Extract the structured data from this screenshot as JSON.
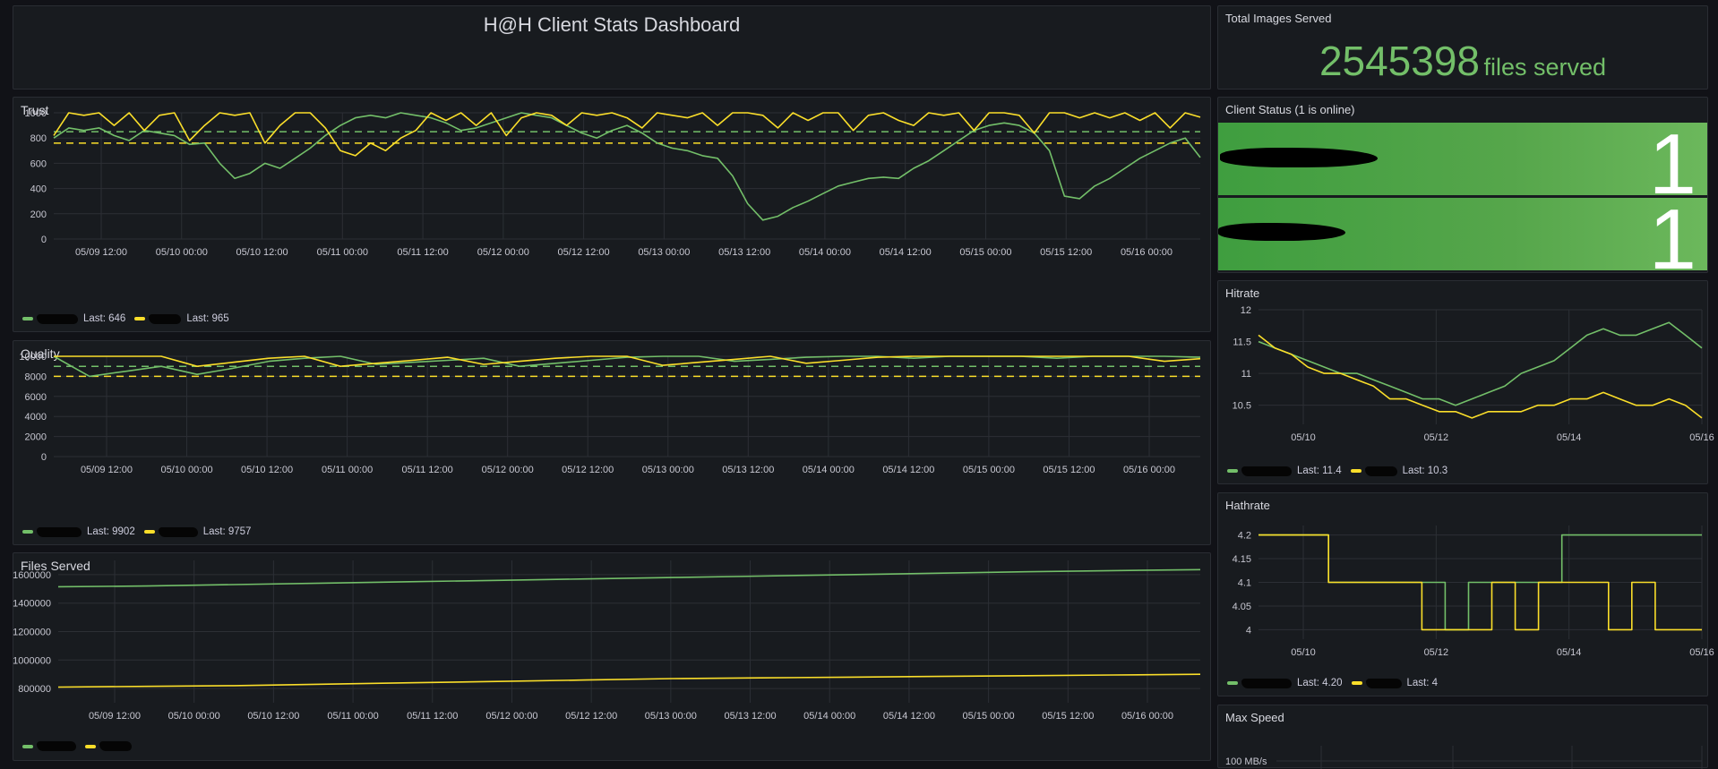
{
  "dashboard": {
    "title": "H@H Client Stats Dashboard"
  },
  "colors": {
    "green": "#73bf69",
    "yellow": "#fade2a",
    "grid": "#2c2f35",
    "axis_text": "#c7c7d1",
    "status_bg": "#56a64b"
  },
  "total_images": {
    "title": "Total Images Served",
    "value": "2545398",
    "unit": "files served"
  },
  "client_status": {
    "title": "Client Status (1 is online)",
    "rows": [
      {
        "value": "1"
      },
      {
        "value": "1"
      }
    ]
  },
  "trust": {
    "title": "Trust",
    "legend": [
      {
        "last": "Last: 646"
      },
      {
        "last": "Last: 965"
      }
    ],
    "chart_data": {
      "type": "line",
      "ylim": [
        0,
        1000
      ],
      "yticks": [
        "1000",
        "800",
        "600",
        "400",
        "200",
        "0"
      ],
      "xticks": [
        "05/09 12:00",
        "05/10 00:00",
        "05/10 12:00",
        "05/11 00:00",
        "05/11 12:00",
        "05/12 00:00",
        "05/12 12:00",
        "05/13 00:00",
        "05/13 12:00",
        "05/14 00:00",
        "05/14 12:00",
        "05/15 00:00",
        "05/15 12:00",
        "05/16 00:00"
      ],
      "thresholds": [
        {
          "color": "green",
          "value": 850
        },
        {
          "color": "yellow",
          "value": 760
        }
      ],
      "series": [
        {
          "color": "green",
          "values": [
            800,
            880,
            860,
            880,
            820,
            780,
            860,
            840,
            820,
            750,
            760,
            600,
            480,
            520,
            600,
            560,
            640,
            720,
            820,
            900,
            960,
            980,
            960,
            1000,
            980,
            960,
            920,
            860,
            880,
            920,
            960,
            1000,
            980,
            960,
            900,
            840,
            800,
            860,
            900,
            840,
            760,
            720,
            700,
            660,
            640,
            500,
            280,
            150,
            180,
            250,
            300,
            360,
            420,
            450,
            480,
            490,
            480,
            560,
            620,
            700,
            780,
            860,
            900,
            920,
            900,
            840,
            700,
            340,
            320,
            420,
            480,
            560,
            640,
            700,
            760,
            800,
            646
          ]
        },
        {
          "color": "yellow",
          "values": [
            820,
            1000,
            980,
            1000,
            900,
            1000,
            860,
            980,
            1000,
            780,
            900,
            1000,
            980,
            1000,
            760,
            900,
            1000,
            1000,
            880,
            700,
            660,
            760,
            700,
            800,
            860,
            1000,
            940,
            1000,
            900,
            1000,
            820,
            960,
            1000,
            980,
            900,
            1000,
            980,
            1000,
            960,
            880,
            1000,
            980,
            960,
            1000,
            900,
            1000,
            1000,
            980,
            880,
            1000,
            940,
            1000,
            1000,
            860,
            980,
            1000,
            940,
            900,
            1000,
            980,
            1000,
            860,
            1000,
            1000,
            980,
            840,
            1000,
            1000,
            960,
            1000,
            960,
            1000,
            940,
            1000,
            880,
            1000,
            965
          ]
        }
      ]
    }
  },
  "quality": {
    "title": "Quality",
    "legend": [
      {
        "last": "Last: 9902"
      },
      {
        "last": "Last: 9757"
      }
    ],
    "chart_data": {
      "type": "line",
      "ylim": [
        0,
        10000
      ],
      "yticks": [
        "10000",
        "8000",
        "6000",
        "4000",
        "2000",
        "0"
      ],
      "xticks": [
        "05/09 12:00",
        "05/10 00:00",
        "05/10 12:00",
        "05/11 00:00",
        "05/11 12:00",
        "05/12 00:00",
        "05/12 12:00",
        "05/13 00:00",
        "05/13 12:00",
        "05/14 00:00",
        "05/14 12:00",
        "05/15 00:00",
        "05/15 12:00",
        "05/16 00:00"
      ],
      "thresholds": [
        {
          "color": "green",
          "value": 9000
        },
        {
          "color": "yellow",
          "value": 8000
        }
      ],
      "series": [
        {
          "color": "green",
          "values": [
            10000,
            8000,
            8500,
            9000,
            8200,
            8800,
            9500,
            9800,
            10000,
            9200,
            9400,
            9600,
            9800,
            9000,
            9300,
            9600,
            9900,
            10000,
            10000,
            9500,
            9700,
            9900,
            10000,
            10000,
            9800,
            10000,
            10000,
            10000,
            9800,
            10000,
            10000,
            10000,
            9902
          ]
        },
        {
          "color": "yellow",
          "values": [
            10000,
            10000,
            10000,
            10000,
            9000,
            9400,
            9800,
            10000,
            9000,
            9300,
            9600,
            9900,
            9200,
            9500,
            9800,
            10000,
            10000,
            9100,
            9400,
            9700,
            10000,
            9300,
            9600,
            9900,
            10000,
            10000,
            10000,
            10000,
            10000,
            10000,
            10000,
            9500,
            9757
          ]
        }
      ]
    }
  },
  "files_served": {
    "title": "Files Served",
    "chart_data": {
      "type": "line",
      "ylim": [
        700000,
        1700000
      ],
      "yticks": [
        "1600000",
        "1400000",
        "1200000",
        "1000000",
        "800000"
      ],
      "xticks": [
        "05/09 12:00",
        "05/10 00:00",
        "05/10 12:00",
        "05/11 00:00",
        "05/11 12:00",
        "05/12 00:00",
        "05/12 12:00",
        "05/13 00:00",
        "05/13 12:00",
        "05/14 00:00",
        "05/14 12:00",
        "05/15 00:00",
        "05/15 12:00",
        "05/16 00:00"
      ],
      "series": [
        {
          "color": "green",
          "values": [
            1515000,
            1520000,
            1530000,
            1540000,
            1550000,
            1560000,
            1570000,
            1580000,
            1590000,
            1600000,
            1610000,
            1620000,
            1628000,
            1635000
          ]
        },
        {
          "color": "yellow",
          "values": [
            810000,
            815000,
            820000,
            830000,
            840000,
            850000,
            860000,
            870000,
            875000,
            880000,
            885000,
            890000,
            895000,
            900000
          ]
        }
      ]
    }
  },
  "hitrate": {
    "title": "Hitrate",
    "legend": [
      {
        "last": "Last: 11.4"
      },
      {
        "last": "Last: 10.3"
      }
    ],
    "chart_data": {
      "type": "line",
      "ylim": [
        10.2,
        12
      ],
      "yticks": [
        "12",
        "11.5",
        "11",
        "10.5"
      ],
      "xticks": [
        "05/10",
        "05/12",
        "05/14",
        "05/16"
      ],
      "series": [
        {
          "color": "green",
          "values": [
            11.5,
            11.4,
            11.3,
            11.2,
            11.1,
            11.0,
            11.0,
            10.9,
            10.8,
            10.7,
            10.6,
            10.6,
            10.5,
            10.6,
            10.7,
            10.8,
            11.0,
            11.1,
            11.2,
            11.4,
            11.6,
            11.7,
            11.6,
            11.6,
            11.7,
            11.8,
            11.6,
            11.4
          ]
        },
        {
          "color": "yellow",
          "values": [
            11.6,
            11.4,
            11.3,
            11.1,
            11.0,
            11.0,
            10.9,
            10.8,
            10.6,
            10.6,
            10.5,
            10.4,
            10.4,
            10.3,
            10.4,
            10.4,
            10.4,
            10.5,
            10.5,
            10.6,
            10.6,
            10.7,
            10.6,
            10.5,
            10.5,
            10.6,
            10.5,
            10.3
          ]
        }
      ]
    }
  },
  "hathrate": {
    "title": "Hathrate",
    "legend": [
      {
        "last": "Last: 4.20"
      },
      {
        "last": "Last: 4"
      }
    ],
    "chart_data": {
      "type": "line",
      "ylim": [
        3.98,
        4.22
      ],
      "yticks": [
        "4.2",
        "4.15",
        "4.1",
        "4.05",
        "4"
      ],
      "xticks": [
        "05/10",
        "05/12",
        "05/14",
        "05/16"
      ],
      "series": [
        {
          "color": "green",
          "values": [
            4.2,
            4.2,
            4.2,
            4.1,
            4.1,
            4.1,
            4.1,
            4.1,
            4.0,
            4.1,
            4.1,
            4.1,
            4.1,
            4.2,
            4.2,
            4.2,
            4.2,
            4.2,
            4.2,
            4.2
          ]
        },
        {
          "color": "yellow",
          "values": [
            4.2,
            4.2,
            4.2,
            4.1,
            4.1,
            4.1,
            4.1,
            4.0,
            4.0,
            4.0,
            4.1,
            4.0,
            4.1,
            4.1,
            4.1,
            4.0,
            4.1,
            4.0,
            4.0,
            4.0
          ]
        }
      ]
    }
  },
  "max_speed": {
    "title": "Max Speed",
    "ytick": "100 MB/s"
  }
}
